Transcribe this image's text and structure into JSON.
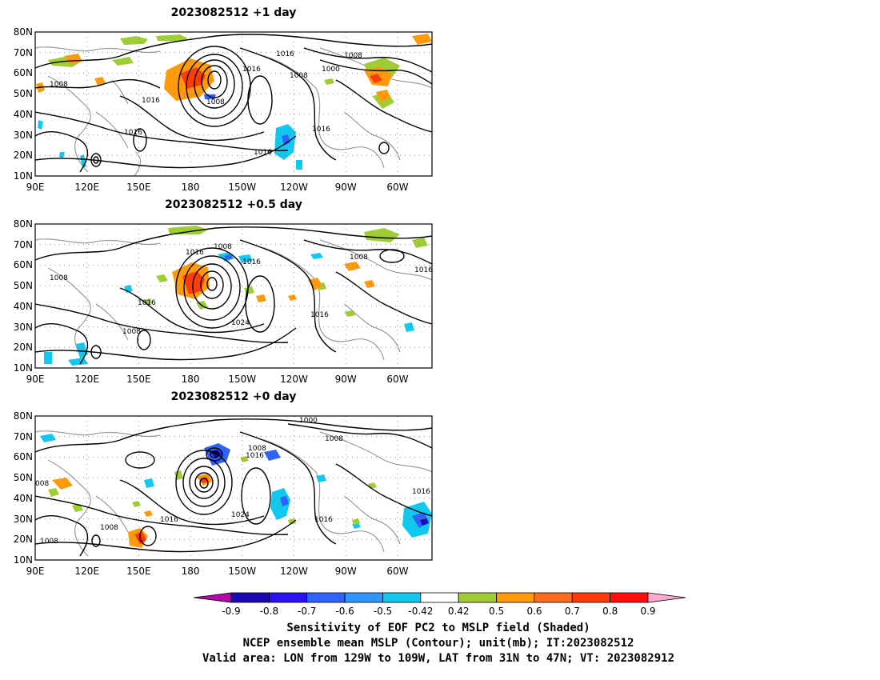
{
  "panels": [
    {
      "title": "2023082512  +1 day",
      "contour_labels": [
        "1016",
        "1016",
        "1008",
        "1000",
        "1008",
        "1016",
        "1008",
        "1016",
        "1008",
        "1016",
        "1016"
      ]
    },
    {
      "title": "2023082512  +0.5 day",
      "contour_labels": [
        "1008",
        "1016",
        "1016",
        "1008",
        "1016",
        "1008",
        "1016",
        "1024",
        "1016",
        "1008"
      ]
    },
    {
      "title": "2023082512  +0 day",
      "contour_labels": [
        "1000",
        "1008",
        "1008",
        "1016",
        "1016",
        "008",
        "1016",
        "1024",
        "1016",
        "1008",
        "1008"
      ]
    }
  ],
  "axes": {
    "lat_ticks": [
      "80N",
      "70N",
      "60N",
      "50N",
      "40N",
      "30N",
      "20N",
      "10N"
    ],
    "lon_ticks": [
      "90E",
      "120E",
      "150E",
      "180",
      "150W",
      "120W",
      "90W",
      "60W"
    ],
    "lat_range": [
      10,
      80
    ],
    "lon_range": [
      90,
      320
    ]
  },
  "colorbar": {
    "labels": [
      "-0.9",
      "-0.8",
      "-0.7",
      "-0.6",
      "-0.5",
      "-0.42",
      "0.42",
      "0.5",
      "0.6",
      "0.7",
      "0.8",
      "0.9"
    ],
    "colors": [
      "#1d08b8",
      "#2a13f0",
      "#2f63ff",
      "#2f96ff",
      "#10c8f0",
      "#ffffff",
      "#9fcd35",
      "#ff9a0a",
      "#ff6a1c",
      "#ff3b0a",
      "#ff0e0e"
    ],
    "low_arrow_color": "#b00aa8",
    "high_arrow_color": "#ffa8d0"
  },
  "caption": {
    "line1": "Sensitivity of EOF PC2 to MSLP field (Shaded)",
    "line2": "NCEP ensemble mean MSLP (Contour); unit(mb); IT:2023082512",
    "line3": "Valid area: LON from 129W to 109W, LAT from 31N to 47N; VT: 2023082912"
  }
}
